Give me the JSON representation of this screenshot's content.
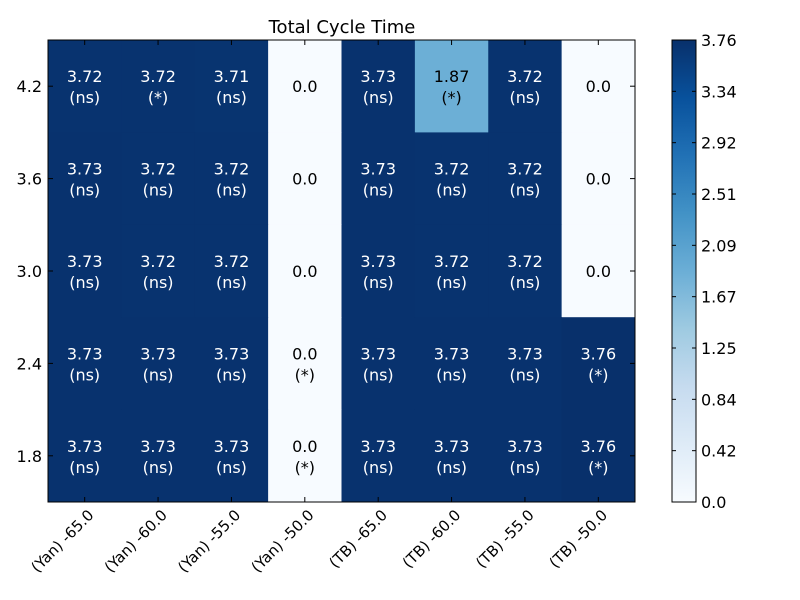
{
  "chart_data": {
    "type": "heatmap",
    "title": "Total Cycle Time",
    "xlabel": "",
    "ylabel": "",
    "x_categories": [
      "(Yan) -65.0",
      "(Yan) -60.0",
      "(Yan) -55.0",
      "(Yan) -50.0",
      "(TB) -65.0",
      "(TB) -60.0",
      "(TB) -55.0",
      "(TB) -50.0"
    ],
    "y_categories": [
      "4.2",
      "3.6",
      "3.0",
      "2.4",
      "1.8"
    ],
    "values": [
      [
        3.72,
        3.72,
        3.71,
        0.0,
        3.73,
        1.87,
        3.72,
        0.0
      ],
      [
        3.73,
        3.72,
        3.72,
        0.0,
        3.73,
        3.72,
        3.72,
        0.0
      ],
      [
        3.73,
        3.72,
        3.72,
        0.0,
        3.73,
        3.72,
        3.72,
        0.0
      ],
      [
        3.73,
        3.73,
        3.73,
        0.0,
        3.73,
        3.73,
        3.73,
        3.76
      ],
      [
        3.73,
        3.73,
        3.73,
        0.0,
        3.73,
        3.73,
        3.73,
        3.76
      ]
    ],
    "value_labels": [
      [
        "3.72",
        "3.72",
        "3.71",
        "0.0",
        "3.73",
        "1.87",
        "3.72",
        "0.0"
      ],
      [
        "3.73",
        "3.72",
        "3.72",
        "0.0",
        "3.73",
        "3.72",
        "3.72",
        "0.0"
      ],
      [
        "3.73",
        "3.72",
        "3.72",
        "0.0",
        "3.73",
        "3.72",
        "3.72",
        "0.0"
      ],
      [
        "3.73",
        "3.73",
        "3.73",
        "0.0",
        "3.73",
        "3.73",
        "3.73",
        "3.76"
      ],
      [
        "3.73",
        "3.73",
        "3.73",
        "0.0",
        "3.73",
        "3.73",
        "3.73",
        "3.76"
      ]
    ],
    "annotations": [
      [
        "(ns)",
        "(*)",
        "(ns)",
        "",
        "(ns)",
        "(*)",
        "(ns)",
        ""
      ],
      [
        "(ns)",
        "(ns)",
        "(ns)",
        "",
        "(ns)",
        "(ns)",
        "(ns)",
        ""
      ],
      [
        "(ns)",
        "(ns)",
        "(ns)",
        "",
        "(ns)",
        "(ns)",
        "(ns)",
        ""
      ],
      [
        "(ns)",
        "(ns)",
        "(ns)",
        "(*)",
        "(ns)",
        "(ns)",
        "(ns)",
        "(*)"
      ],
      [
        "(ns)",
        "(ns)",
        "(ns)",
        "(*)",
        "(ns)",
        "(ns)",
        "(ns)",
        "(*)"
      ]
    ],
    "colorbar": {
      "min": 0.0,
      "max": 3.76,
      "ticks": [
        "0.0",
        "0.42",
        "0.84",
        "1.25",
        "1.67",
        "2.09",
        "2.51",
        "2.92",
        "3.34",
        "3.76"
      ]
    },
    "colormap": "Blues"
  }
}
